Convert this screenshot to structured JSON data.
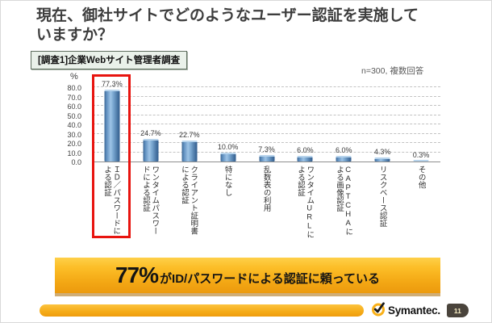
{
  "slide": {
    "title_lines": [
      "現在、御社サイトでどのようなユーザー認証を実施して",
      "いますか？"
    ],
    "survey_label": "[調査1]企業Webサイト管理者調査",
    "sample_note": "n=300, 複数回答"
  },
  "chart_data": {
    "type": "bar",
    "unit_label": "%",
    "categories": [
      "ＩＤ／パスワードによる認証",
      "ワンタイムパスワードによる認証",
      "クライアント証明書による認証",
      "特になし",
      "乱数表の利用",
      "ワンタイムURLによる認証",
      "CAPTCHAによる画像認証",
      "リスクベース認証",
      "その他"
    ],
    "values": [
      77.3,
      24.7,
      22.7,
      10.0,
      7.3,
      6.0,
      6.0,
      4.3,
      0.3
    ],
    "value_labels": [
      "77.3%",
      "24.7%",
      "22.7%",
      "10.0%",
      "7.3%",
      "6.0%",
      "6.0%",
      "4.3%",
      "0.3%"
    ],
    "ylim": [
      0,
      80
    ],
    "ytick_step": 10,
    "yticks": [
      "80.0",
      "70.0",
      "60.0",
      "50.0",
      "40.0",
      "30.0",
      "20.0",
      "10.0",
      "0.0"
    ],
    "grid": "horizontal dashed",
    "legend": "none",
    "bar_color": "#4f81bd",
    "highlight_index": 0,
    "highlight_color": "#e8140f"
  },
  "callout": {
    "big_text": "77%",
    "rest_text": "がID/パスワードによる認証に頼っている",
    "bg_color_top": "#fcbe27",
    "bg_color_bottom": "#ec9a0d"
  },
  "footer": {
    "brand": "Symantec.",
    "logo_icon": "check-circle",
    "page_number": "11",
    "bar_color": "#f5ab17"
  }
}
